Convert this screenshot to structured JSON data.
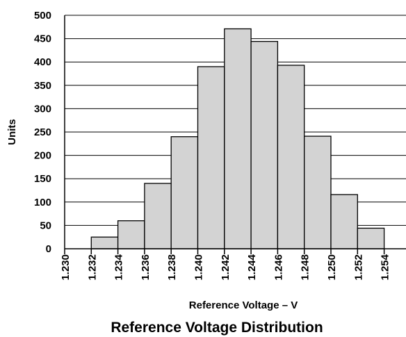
{
  "chart_data": {
    "type": "bar",
    "title": "Reference Voltage Distribution",
    "xlabel": "Reference Voltage – V",
    "ylabel": "Units",
    "ylim": [
      0,
      500
    ],
    "yticks": [
      "0",
      "50",
      "100",
      "150",
      "200",
      "250",
      "300",
      "350",
      "400",
      "450",
      "500"
    ],
    "xticks": [
      "1.230",
      "1.232",
      "1.234",
      "1.236",
      "1.238",
      "1.240",
      "1.242",
      "1.244",
      "1.246",
      "1.248",
      "1.250",
      "1.252",
      "1.254"
    ],
    "bins": [
      {
        "from": 1.23,
        "to": 1.232,
        "value": 0
      },
      {
        "from": 1.232,
        "to": 1.234,
        "value": 25
      },
      {
        "from": 1.234,
        "to": 1.236,
        "value": 60
      },
      {
        "from": 1.236,
        "to": 1.238,
        "value": 140
      },
      {
        "from": 1.238,
        "to": 1.24,
        "value": 240
      },
      {
        "from": 1.24,
        "to": 1.242,
        "value": 390
      },
      {
        "from": 1.242,
        "to": 1.244,
        "value": 471
      },
      {
        "from": 1.244,
        "to": 1.246,
        "value": 444
      },
      {
        "from": 1.246,
        "to": 1.248,
        "value": 393
      },
      {
        "from": 1.248,
        "to": 1.25,
        "value": 241
      },
      {
        "from": 1.25,
        "to": 1.252,
        "value": 116
      },
      {
        "from": 1.252,
        "to": 1.254,
        "value": 44
      }
    ],
    "grid": "horizontal",
    "bar_color": "#d3d3d3",
    "edge_color": "#000000"
  }
}
